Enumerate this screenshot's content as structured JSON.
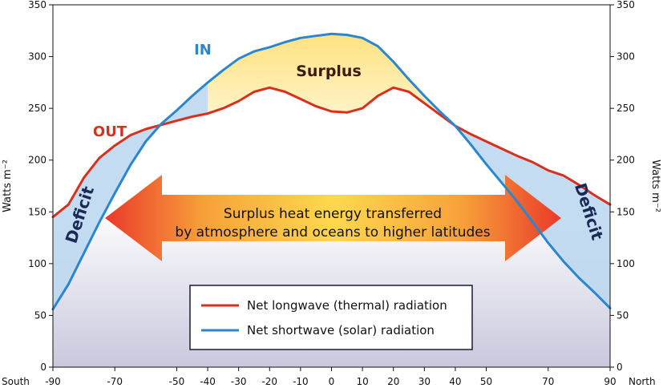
{
  "chart_data": {
    "type": "line",
    "x_axis": {
      "left_end_label": "South",
      "right_end_label": "North",
      "ticks": [
        -90,
        -70,
        -50,
        -40,
        -30,
        -20,
        -10,
        0,
        10,
        20,
        30,
        40,
        50,
        70,
        90
      ],
      "range": [
        -90,
        90
      ]
    },
    "y_axis": {
      "label_left": "Watts m⁻²",
      "label_right": "Watts m⁻²",
      "ticks": [
        0,
        50,
        100,
        150,
        200,
        250,
        300,
        350
      ],
      "range": [
        0,
        350
      ]
    },
    "grid": false,
    "series": [
      {
        "name": "Net longwave (thermal) radiation",
        "curve_label": "OUT",
        "color": "#d9301e",
        "points": [
          [
            -90,
            145
          ],
          [
            -85,
            157
          ],
          [
            -80,
            183
          ],
          [
            -75,
            202
          ],
          [
            -70,
            214
          ],
          [
            -65,
            224
          ],
          [
            -60,
            230
          ],
          [
            -55,
            234
          ],
          [
            -50,
            238
          ],
          [
            -45,
            242
          ],
          [
            -40,
            245
          ],
          [
            -35,
            250
          ],
          [
            -30,
            257
          ],
          [
            -25,
            266
          ],
          [
            -20,
            270
          ],
          [
            -15,
            266
          ],
          [
            -10,
            259
          ],
          [
            -5,
            252
          ],
          [
            0,
            247
          ],
          [
            5,
            246
          ],
          [
            10,
            250
          ],
          [
            15,
            262
          ],
          [
            20,
            270
          ],
          [
            25,
            266
          ],
          [
            30,
            255
          ],
          [
            35,
            244
          ],
          [
            40,
            233
          ],
          [
            45,
            225
          ],
          [
            50,
            218
          ],
          [
            55,
            211
          ],
          [
            60,
            204
          ],
          [
            65,
            198
          ],
          [
            70,
            190
          ],
          [
            75,
            185
          ],
          [
            80,
            176
          ],
          [
            85,
            166
          ],
          [
            90,
            157
          ]
        ]
      },
      {
        "name": "Net shortwave (solar) radiation",
        "curve_label": "IN",
        "color": "#2a86cf",
        "points": [
          [
            -90,
            56
          ],
          [
            -85,
            80
          ],
          [
            -80,
            110
          ],
          [
            -75,
            140
          ],
          [
            -70,
            168
          ],
          [
            -65,
            195
          ],
          [
            -60,
            218
          ],
          [
            -55,
            235
          ],
          [
            -50,
            248
          ],
          [
            -45,
            262
          ],
          [
            -40,
            275
          ],
          [
            -35,
            287
          ],
          [
            -30,
            298
          ],
          [
            -25,
            305
          ],
          [
            -20,
            309
          ],
          [
            -15,
            314
          ],
          [
            -10,
            318
          ],
          [
            -5,
            320
          ],
          [
            0,
            322
          ],
          [
            5,
            321
          ],
          [
            10,
            318
          ],
          [
            15,
            310
          ],
          [
            20,
            295
          ],
          [
            25,
            278
          ],
          [
            30,
            262
          ],
          [
            35,
            247
          ],
          [
            40,
            233
          ],
          [
            45,
            215
          ],
          [
            50,
            196
          ],
          [
            55,
            178
          ],
          [
            60,
            160
          ],
          [
            65,
            140
          ],
          [
            70,
            120
          ],
          [
            75,
            102
          ],
          [
            80,
            86
          ],
          [
            85,
            72
          ],
          [
            90,
            57
          ]
        ]
      }
    ],
    "annotations": {
      "surplus": "Surplus",
      "deficit_left": "Deficit",
      "deficit_right": "Deficit",
      "arrow_line1": "Surplus heat energy transferred",
      "arrow_line2": "by atmosphere and oceans to higher latitudes"
    },
    "legend_position": "bottom-center"
  }
}
